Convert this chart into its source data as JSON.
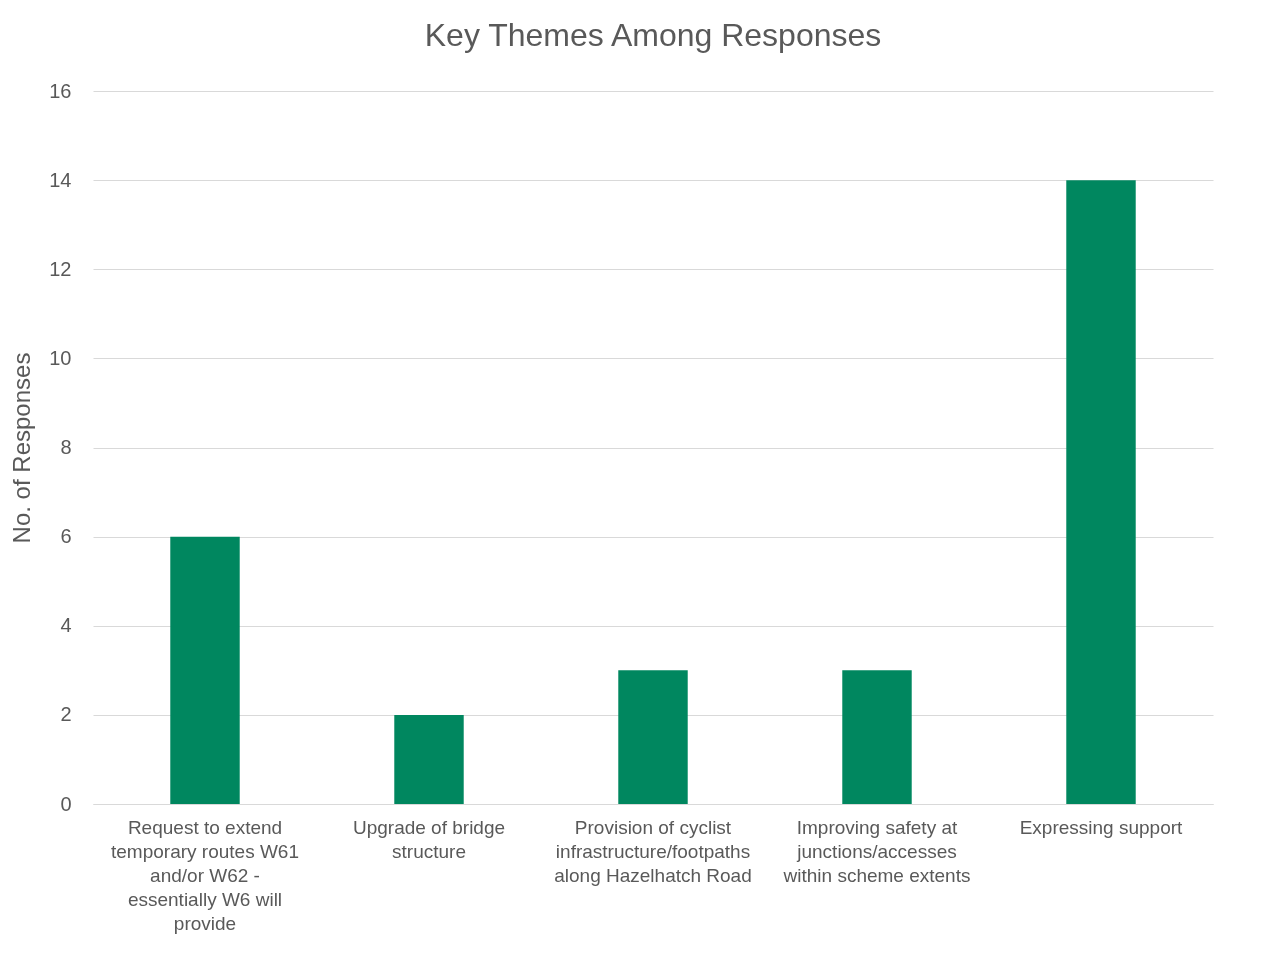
{
  "chart_data": {
    "type": "bar",
    "title": "Key Themes Among Responses",
    "ylabel": "No. of Responses",
    "categories": [
      "Request to extend temporary routes W61 and/or W62 - essentially W6 will provide",
      "Upgrade of bridge structure",
      "Provision of cyclist infrastructure/footpaths along Hazelhatch Road",
      "Improving safety at junctions/accesses within scheme extents",
      "Expressing support"
    ],
    "values": [
      6,
      2,
      3,
      3,
      14
    ],
    "color": "#00875f",
    "ylim": [
      0,
      16
    ],
    "yticks": [
      0,
      2,
      4,
      6,
      8,
      10,
      12,
      14,
      16
    ],
    "grid": "y"
  }
}
